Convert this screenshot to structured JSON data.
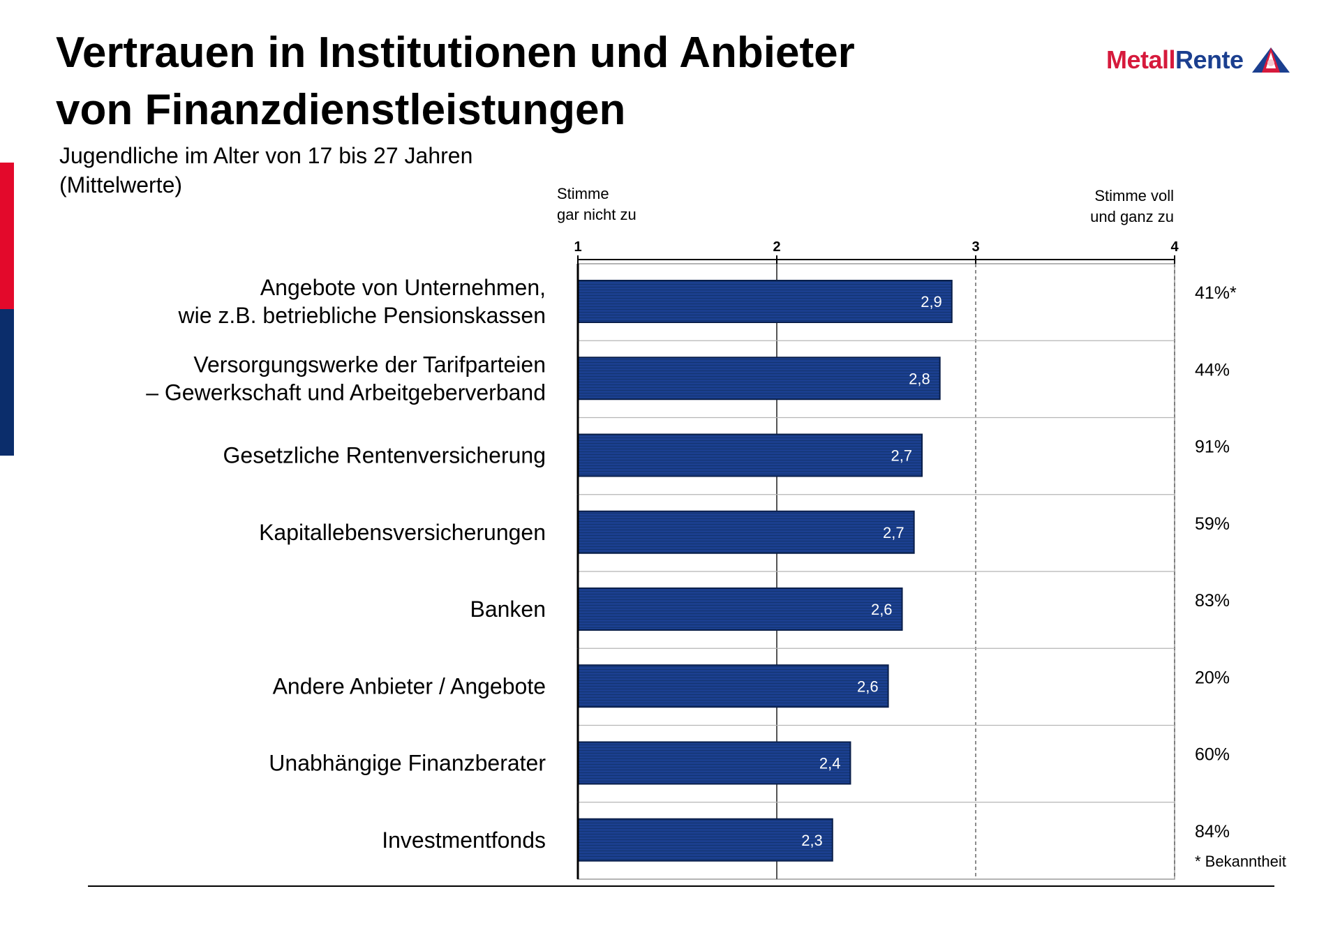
{
  "header": {
    "title_line1": "Vertrauen in Institutionen und Anbieter",
    "title_line2": "von Finanzdienstleistungen",
    "subtitle_line1": "Jugendliche im Alter von 17 bis 27 Jahren",
    "subtitle_line2": "(Mittelwerte)"
  },
  "logo": {
    "text_part1": "Metall",
    "text_part2": "Rente"
  },
  "scale": {
    "left_line1": "Stimme",
    "left_line2": "gar nicht zu",
    "right_line1": "Stimme voll",
    "right_line2": "und ganz zu"
  },
  "footnote": "* Bekanntheit",
  "colors": {
    "bar_fill": "#1b3f8f",
    "bar_border": "#0a1f4a",
    "accent_red": "#e3092b",
    "accent_blue": "#0b2d6b",
    "logo_red": "#d61a3c",
    "logo_blue": "#1b3f8f"
  },
  "chart_data": {
    "type": "bar",
    "orientation": "horizontal",
    "xlim": [
      1,
      4
    ],
    "ticks": [
      "1",
      "2",
      "3",
      "4"
    ],
    "grid": true,
    "categories": [
      [
        "Angebote von Unternehmen,",
        "wie z.B. betriebliche Pensionskassen"
      ],
      [
        "Versorgungswerke der Tarifparteien",
        "– Gewerkschaft und Arbeitgeberverband"
      ],
      [
        "Gesetzliche Rentenversicherung"
      ],
      [
        "Kapitallebensversicherungen"
      ],
      [
        "Banken"
      ],
      [
        "Andere Anbieter / Angebote"
      ],
      [
        "Unabhängige Finanzberater"
      ],
      [
        "Investmentfonds"
      ]
    ],
    "values": [
      2.88,
      2.82,
      2.73,
      2.69,
      2.63,
      2.56,
      2.37,
      2.28
    ],
    "value_labels": [
      "2,9",
      "2,8",
      "2,7",
      "2,7",
      "2,6",
      "2,6",
      "2,4",
      "2,3"
    ],
    "awareness": [
      "41%*",
      "44%",
      "91%",
      "59%",
      "83%",
      "20%",
      "60%",
      "84%"
    ]
  }
}
